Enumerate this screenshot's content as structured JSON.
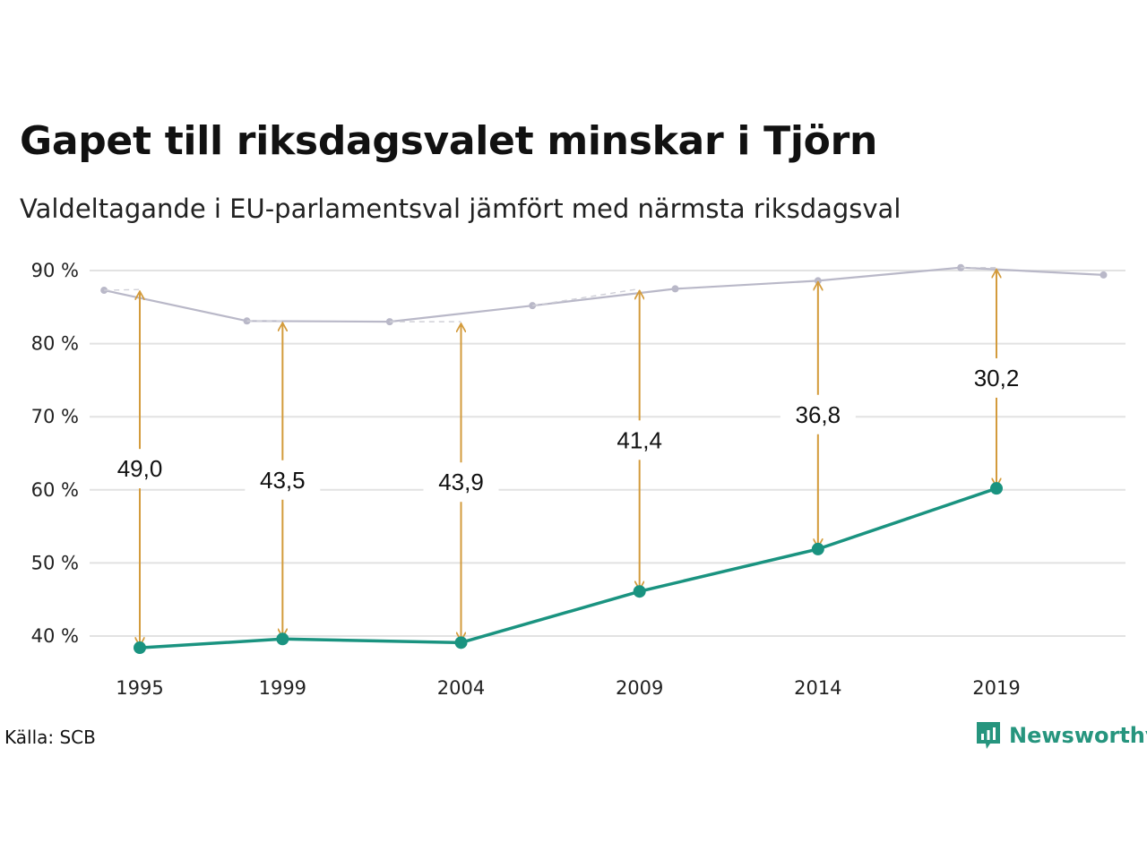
{
  "title": "Gapet till riksdagsvalet minskar i Tjörn",
  "subtitle": "Valdeltagande i EU-parlamentsval jämfört med närmsta riksdagsval",
  "source": "Källa: SCB",
  "brand": "Newsworthy",
  "colors": {
    "eu": "#1a9380",
    "riksdag": "#b9b8c8",
    "arrow": "#d39b3c",
    "grid": "#e2e2e2"
  },
  "chart_data": {
    "type": "line",
    "title": "Gapet till riksdagsvalet minskar i Tjörn",
    "subtitle": "Valdeltagande i EU-parlamentsval jämfört med närmsta riksdagsval",
    "ylim": [
      36,
      91
    ],
    "xlim": [
      1995,
      2022
    ],
    "grid": true,
    "y_ticks": [
      40,
      50,
      60,
      70,
      80,
      90
    ],
    "y_tick_labels": [
      "40 %",
      "50 %",
      "60 %",
      "70 %",
      "80 %",
      "90 %"
    ],
    "x_tick_labels": [
      "1995",
      "1999",
      "2004",
      "2009",
      "2014",
      "2019"
    ],
    "series": [
      {
        "key": "riksdag",
        "x": [
          1994,
          1998,
          2002,
          2006,
          2010,
          2014,
          2018,
          2022
        ],
        "values": [
          87.3,
          83.1,
          83.0,
          85.2,
          87.5,
          88.6,
          90.4,
          89.4
        ]
      },
      {
        "key": "eu",
        "x": [
          1995,
          1999,
          2004,
          2009,
          2014,
          2019
        ],
        "values": [
          38.4,
          39.6,
          39.1,
          46.1,
          51.9,
          60.2
        ]
      }
    ],
    "gaps": [
      {
        "x": 1995,
        "top": 87.4,
        "bottom": 38.4,
        "label": "49,0"
      },
      {
        "x": 1999,
        "top": 83.1,
        "bottom": 39.6,
        "label": "43,5"
      },
      {
        "x": 2004,
        "top": 83.0,
        "bottom": 39.1,
        "label": "43,9"
      },
      {
        "x": 2009,
        "top": 87.5,
        "bottom": 46.1,
        "label": "41,4"
      },
      {
        "x": 2014,
        "top": 88.7,
        "bottom": 51.9,
        "label": "36,8"
      },
      {
        "x": 2019,
        "top": 90.4,
        "bottom": 60.2,
        "label": "30,2"
      }
    ]
  }
}
